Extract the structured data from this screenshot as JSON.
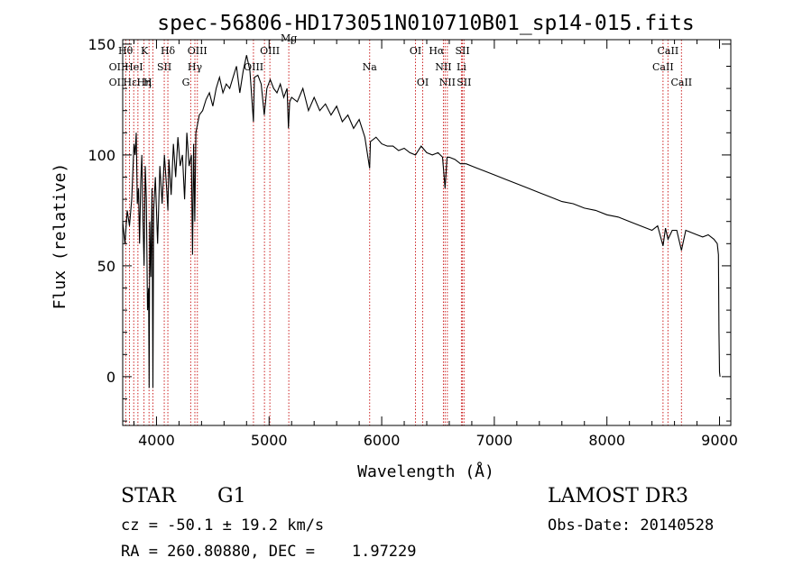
{
  "chart_data": {
    "type": "line",
    "title": "spec-56806-HD173051N010710B01_sp14-015.fits",
    "xlabel": "Wavelength (Å)",
    "ylabel": "Flux (relative)",
    "xlim": [
      3700,
      9100
    ],
    "ylim": [
      -22,
      152
    ],
    "xticks": [
      4000,
      5000,
      6000,
      7000,
      8000,
      9000
    ],
    "yticks": [
      0,
      50,
      100,
      150
    ],
    "series": [
      {
        "name": "flux",
        "x": [
          3700,
          3720,
          3740,
          3760,
          3780,
          3800,
          3810,
          3820,
          3830,
          3840,
          3850,
          3860,
          3870,
          3880,
          3890,
          3900,
          3910,
          3920,
          3930,
          3935,
          3940,
          3950,
          3960,
          3968,
          3975,
          3990,
          4010,
          4030,
          4050,
          4070,
          4090,
          4101,
          4110,
          4130,
          4150,
          4170,
          4190,
          4210,
          4230,
          4250,
          4270,
          4290,
          4310,
          4320,
          4330,
          4340,
          4350,
          4380,
          4410,
          4440,
          4470,
          4500,
          4530,
          4560,
          4590,
          4620,
          4650,
          4680,
          4710,
          4740,
          4770,
          4800,
          4830,
          4861,
          4870,
          4900,
          4930,
          4957,
          4980,
          5010,
          5040,
          5070,
          5100,
          5130,
          5160,
          5172,
          5183,
          5200,
          5250,
          5300,
          5350,
          5400,
          5450,
          5500,
          5550,
          5600,
          5650,
          5700,
          5750,
          5800,
          5850,
          5893,
          5900,
          5950,
          6000,
          6050,
          6100,
          6150,
          6200,
          6250,
          6300,
          6350,
          6400,
          6450,
          6500,
          6540,
          6563,
          6580,
          6600,
          6650,
          6700,
          6750,
          6800,
          6850,
          6900,
          7000,
          7100,
          7200,
          7300,
          7400,
          7500,
          7600,
          7700,
          7800,
          7900,
          8000,
          8100,
          8200,
          8300,
          8400,
          8450,
          8498,
          8520,
          8542,
          8580,
          8620,
          8662,
          8700,
          8750,
          8800,
          8850,
          8900,
          8950,
          8980,
          8990,
          8995,
          9000,
          9005
        ],
        "y": [
          70,
          60,
          75,
          68,
          80,
          105,
          100,
          110,
          78,
          85,
          60,
          88,
          100,
          70,
          50,
          95,
          80,
          30,
          40,
          -5,
          70,
          45,
          85,
          -5,
          75,
          90,
          60,
          95,
          78,
          100,
          85,
          75,
          98,
          82,
          105,
          90,
          108,
          95,
          100,
          80,
          110,
          95,
          100,
          55,
          105,
          70,
          110,
          118,
          120,
          125,
          128,
          122,
          130,
          135,
          128,
          132,
          130,
          135,
          140,
          128,
          138,
          145,
          138,
          115,
          135,
          136,
          132,
          118,
          130,
          134,
          130,
          128,
          132,
          126,
          130,
          112,
          124,
          126,
          124,
          130,
          120,
          126,
          120,
          123,
          118,
          122,
          115,
          118,
          112,
          116,
          108,
          94,
          106,
          108,
          105,
          104,
          104,
          102,
          103,
          101,
          100,
          104,
          101,
          100,
          101,
          99,
          85,
          99,
          99,
          98,
          96,
          96,
          95,
          94,
          93,
          91,
          89,
          87,
          85,
          83,
          81,
          79,
          78,
          76,
          75,
          73,
          72,
          70,
          68,
          66,
          68,
          59,
          67,
          62,
          66,
          66,
          57,
          66,
          65,
          64,
          63,
          64,
          62,
          60,
          55,
          20,
          2,
          0
        ]
      }
    ],
    "line_markers": [
      {
        "label": "Hθ",
        "x": 3798,
        "row": 1,
        "pos": "left"
      },
      {
        "label": "OII",
        "x": 3727,
        "row": 2,
        "pos": "left"
      },
      {
        "label": "OII",
        "x": 3727,
        "row": 3,
        "pos": "left"
      },
      {
        "label": "Hε",
        "x": 3835,
        "row": 3,
        "pos": "left"
      },
      {
        "label": "Hη",
        "x": 3889,
        "row": 3,
        "pos": "center"
      },
      {
        "label": "HeI",
        "x": 3889,
        "row": 2,
        "pos": "left"
      },
      {
        "label": "K",
        "x": 3934,
        "row": 1,
        "pos": "left"
      },
      {
        "label": "H",
        "x": 3968,
        "row": 3,
        "pos": "left"
      },
      {
        "label": "SII",
        "x": 4069,
        "row": 2,
        "pos": "center"
      },
      {
        "label": "Hδ",
        "x": 4101,
        "row": 1,
        "pos": "center"
      },
      {
        "label": "G",
        "x": 4304,
        "row": 3,
        "pos": "left"
      },
      {
        "label": "Hγ",
        "x": 4341,
        "row": 2,
        "pos": "center"
      },
      {
        "label": "OIII",
        "x": 4363,
        "row": 1,
        "pos": "center"
      },
      {
        "label": "OIII",
        "x": 4959,
        "row": 2,
        "pos": "left"
      },
      {
        "label": "OIII",
        "x": 5007,
        "row": 1,
        "pos": "center"
      },
      {
        "label": "Mg",
        "x": 5175,
        "row": 0,
        "pos": "center"
      },
      {
        "label": "Na",
        "x": 5893,
        "row": 2,
        "pos": "center"
      },
      {
        "label": "OI",
        "x": 6300,
        "row": 1,
        "pos": "center"
      },
      {
        "label": "OI",
        "x": 6364,
        "row": 3,
        "pos": "center"
      },
      {
        "label": "Hα",
        "x": 6563,
        "row": 1,
        "pos": "left"
      },
      {
        "label": "NII",
        "x": 6548,
        "row": 2,
        "pos": "center"
      },
      {
        "label": "NII",
        "x": 6583,
        "row": 3,
        "pos": "center"
      },
      {
        "label": "SII",
        "x": 6717,
        "row": 1,
        "pos": "center"
      },
      {
        "label": "Li",
        "x": 6708,
        "row": 2,
        "pos": "center"
      },
      {
        "label": "SII",
        "x": 6731,
        "row": 3,
        "pos": "center"
      },
      {
        "label": "CaII",
        "x": 8498,
        "row": 2,
        "pos": "center"
      },
      {
        "label": "CaII",
        "x": 8542,
        "row": 1,
        "pos": "center"
      },
      {
        "label": "CaII",
        "x": 8662,
        "row": 3,
        "pos": "center"
      }
    ],
    "marker_line_x": [
      3727,
      3760,
      3798,
      3835,
      3889,
      3934,
      3968,
      4069,
      4101,
      4304,
      4341,
      4363,
      4861,
      4959,
      5007,
      5175,
      5893,
      6300,
      6364,
      6548,
      6563,
      6583,
      6708,
      6717,
      6731,
      8498,
      8542,
      8662
    ],
    "colors": {
      "line": "#000000",
      "marker": "#cc2222"
    }
  },
  "info": {
    "object_type": "STAR",
    "subclass": "G1",
    "survey": "LAMOST DR3",
    "redshift_text": "cz = -50.1 ± 19.2 km/s",
    "obs_date_text": "Obs-Date: 20140528",
    "coords_text": "RA = 260.80880, DEC =    1.97229"
  }
}
